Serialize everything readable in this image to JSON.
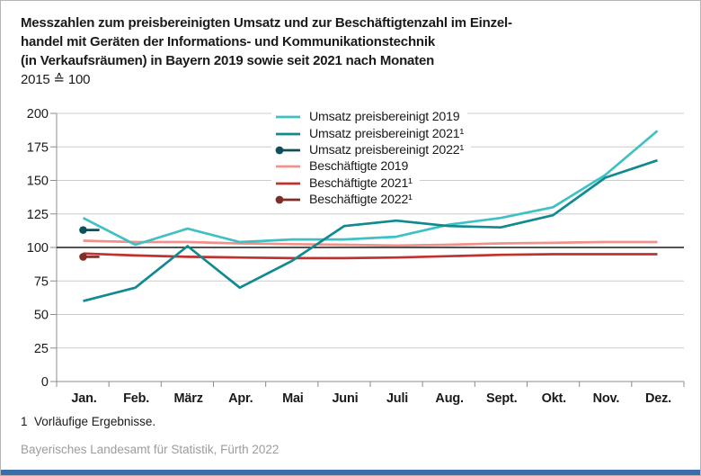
{
  "title": {
    "line1": "Messzahlen zum preisbereinigten Umsatz und zur Beschäftigtenzahl im Einzel-",
    "line2": "handel mit Geräten der Informations- und Kommunikationstechnik",
    "line3": "(in Verkaufsräumen) in Bayern 2019 sowie seit 2021 nach Monaten",
    "subtitle": "2015 ≙ 100"
  },
  "footnote": "1  Vorläufige Ergebnisse.",
  "source": "Bayerisches Landesamt für Statistik, Fürth 2022",
  "colors": {
    "grid": "#cccccc",
    "axis": "#8c8c8c",
    "baseline_100": "#1a1a1a",
    "text": "#1a1a1a",
    "source_text": "#9c9c9c",
    "bottom_bar": "#3b6ea8",
    "page_border": "#b5b5b5",
    "legend_background": "#ffffff"
  },
  "chart_data": {
    "type": "line",
    "categories": [
      "Jan.",
      "Feb.",
      "März",
      "Apr.",
      "Mai",
      "Juni",
      "Juli",
      "Aug.",
      "Sept.",
      "Okt.",
      "Nov.",
      "Dez."
    ],
    "ylim": [
      0,
      200
    ],
    "y_ticks": [
      0,
      25,
      50,
      75,
      100,
      125,
      150,
      175,
      200
    ],
    "baseline": 100,
    "grid": true,
    "legend_position": "upper center inside plot",
    "series": [
      {
        "name": "Umsatz preisbereinigt 2019",
        "color": "#3ec1c5",
        "marker": "line",
        "values": [
          122,
          102,
          114,
          104,
          106,
          106,
          108,
          117,
          122,
          130,
          154,
          187
        ]
      },
      {
        "name": "Umsatz preisbereinigt 2021¹",
        "color": "#108991",
        "marker": "line",
        "values": [
          60,
          70,
          101,
          70,
          90,
          116,
          120,
          116,
          115,
          124,
          152,
          165
        ]
      },
      {
        "name": "Umsatz preisbereinigt 2022¹",
        "color": "#0e4f59",
        "marker": "dot-line",
        "values": [
          113
        ]
      },
      {
        "name": "Beschäftigte 2019",
        "color": "#f0918a",
        "marker": "line",
        "values": [
          105,
          104,
          104,
          103,
          102.5,
          102,
          101.5,
          102,
          103,
          103.5,
          104,
          104
        ]
      },
      {
        "name": "Beschäftigte 2021¹",
        "color": "#c0322f",
        "marker": "line",
        "values": [
          95.5,
          94,
          93,
          92.5,
          92,
          92,
          92.5,
          93.5,
          94.5,
          95,
          95,
          95
        ]
      },
      {
        "name": "Beschäftigte 2022¹",
        "color": "#7e2d27",
        "marker": "dot-line",
        "values": [
          93
        ]
      }
    ]
  }
}
